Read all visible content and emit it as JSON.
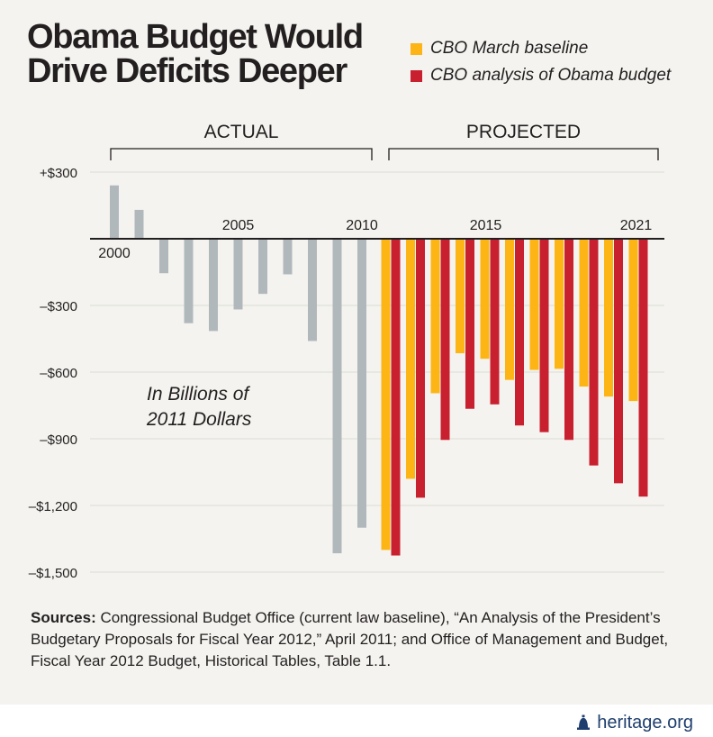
{
  "title_lines": [
    "Obama Budget Would",
    "Drive Deficits Deeper"
  ],
  "legend": [
    {
      "label": "CBO March baseline",
      "color": "#fdb515"
    },
    {
      "label": "CBO analysis of Obama budget",
      "color": "#c8202f"
    }
  ],
  "brackets": {
    "actual": "ACTUAL",
    "projected": "PROJECTED"
  },
  "annotation_lines": [
    "In Billions of",
    "2011 Dollars"
  ],
  "sources": {
    "label": "Sources:",
    "text": "Congressional Budget Office (current law baseline), “An Analysis of the President’s Budgetary Proposals for Fiscal Year 2012,” April 2011; and Office of Management and Budget, Fiscal Year 2012 Budget, Historical Tables, Table 1.1."
  },
  "footer": {
    "brand": "heritage.org"
  },
  "colors": {
    "actual": "#b1b8bc",
    "baseline": "#fdb515",
    "obama": "#c8202f",
    "panel": "#f4f3ef",
    "grid": "#dcdcd6"
  },
  "chart_data": {
    "type": "bar",
    "ylim": [
      -1500,
      300
    ],
    "yticks": [
      300,
      -300,
      -600,
      -900,
      -1200,
      -1500
    ],
    "ytick_labels": [
      "+$300",
      "–$300",
      "–$600",
      "–$900",
      "–$1,200",
      "–$1,500"
    ],
    "x_tick_labels": [
      {
        "year": 2000,
        "label": "2000"
      },
      {
        "year": 2005,
        "label": "2005"
      },
      {
        "year": 2010,
        "label": "2010"
      },
      {
        "year": 2015,
        "label": "2015"
      },
      {
        "year": 2021,
        "label": "2021"
      }
    ],
    "series": [
      {
        "name": "Actual",
        "color": "#b1b8bc",
        "x": [
          2000,
          2001,
          2002,
          2003,
          2004,
          2005,
          2006,
          2007,
          2008,
          2009,
          2010
        ],
        "values": [
          240,
          130,
          -155,
          -380,
          -415,
          -318,
          -248,
          -160,
          -460,
          -1415,
          -1300
        ]
      },
      {
        "name": "CBO March baseline",
        "color": "#fdb515",
        "x": [
          2011,
          2012,
          2013,
          2014,
          2015,
          2016,
          2017,
          2018,
          2019,
          2020,
          2021
        ],
        "values": [
          -1400,
          -1080,
          -695,
          -515,
          -540,
          -635,
          -590,
          -585,
          -665,
          -710,
          -730
        ]
      },
      {
        "name": "CBO analysis of Obama budget",
        "color": "#c8202f",
        "x": [
          2011,
          2012,
          2013,
          2014,
          2015,
          2016,
          2017,
          2018,
          2019,
          2020,
          2021
        ],
        "values": [
          -1425,
          -1165,
          -905,
          -765,
          -745,
          -840,
          -870,
          -905,
          -1020,
          -1100,
          -1160
        ]
      }
    ]
  }
}
